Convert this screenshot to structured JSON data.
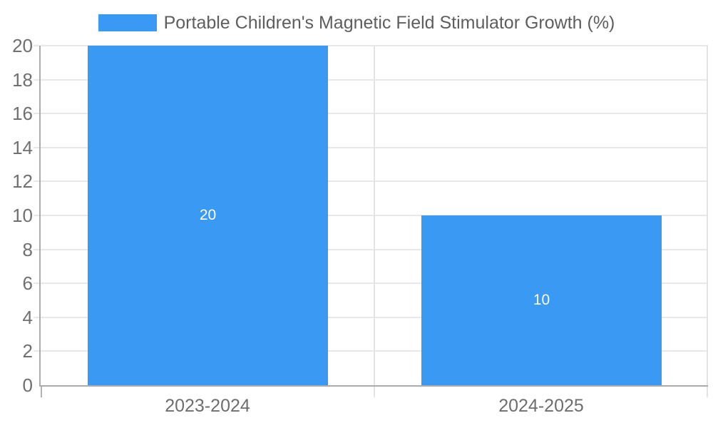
{
  "legend": {
    "label": "Portable Children's Magnetic Field Stimulator Growth (%)"
  },
  "chart_data": {
    "type": "bar",
    "title": "",
    "xlabel": "",
    "ylabel": "",
    "categories": [
      "2023-2024",
      "2024-2025"
    ],
    "series": [
      {
        "name": "Portable Children's Magnetic Field Stimulator Growth (%)",
        "values": [
          20,
          10
        ]
      }
    ],
    "values": [
      20,
      10
    ],
    "bar_labels": [
      "20",
      "10"
    ],
    "yticks": [
      0,
      2,
      4,
      6,
      8,
      10,
      12,
      14,
      16,
      18,
      20
    ],
    "ylim": [
      0,
      20
    ],
    "ytick_step": 2,
    "grid": true,
    "legend_position": "top-center"
  },
  "colors": {
    "bar": "#3A99F2",
    "grid": "#E8E8E8",
    "boundary": "#E3E3E3",
    "axis": "#ABABAB",
    "left_xtick": "#B3B3B3",
    "tick_text": "#707070",
    "category_text": "#6E6E6E",
    "legend_text": "#5E5E5E",
    "bar_value_text": "#FFFFFF"
  }
}
